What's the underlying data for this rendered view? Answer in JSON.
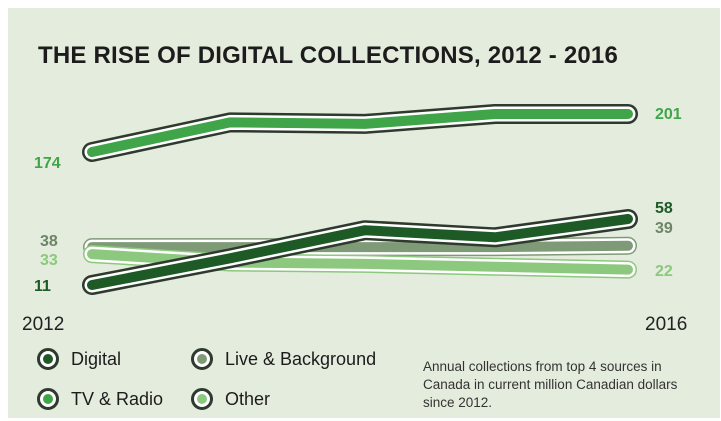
{
  "chart_data": {
    "type": "line",
    "title": "THE RISE OF DIGITAL COLLECTIONS, 2012 - 2016",
    "x": [
      2012,
      2013,
      2014,
      2015,
      2016
    ],
    "x_tick_labels": [
      "2012",
      "2016"
    ],
    "series": [
      {
        "name": "TV & Radio",
        "color": "#3fa548",
        "values": [
          174,
          195,
          194,
          201,
          201
        ],
        "start_label": "174",
        "end_label": "201"
      },
      {
        "name": "Live & Background",
        "color": "#7f9a77",
        "values": [
          38,
          38,
          38,
          38,
          39
        ],
        "start_label": "38",
        "end_label": "39"
      },
      {
        "name": "Other",
        "color": "#8cc87e",
        "values": [
          33,
          27,
          26,
          24,
          22
        ],
        "start_label": "33",
        "end_label": "22"
      },
      {
        "name": "Digital",
        "color": "#1d5a26",
        "values": [
          11,
          30,
          50,
          45,
          58
        ],
        "start_label": "11",
        "end_label": "58"
      }
    ],
    "legend_placement": "bottom-left",
    "grid": false,
    "note": "Annual collections from top 4 sources in Canada in current million Canadian dollars since 2012."
  },
  "legend": [
    {
      "label": "Digital",
      "color": "#1d5a26"
    },
    {
      "label": "Live & Background",
      "color": "#7f9a77"
    },
    {
      "label": "TV & Radio",
      "color": "#3fa548"
    },
    {
      "label": "Other",
      "color": "#8cc87e"
    }
  ]
}
